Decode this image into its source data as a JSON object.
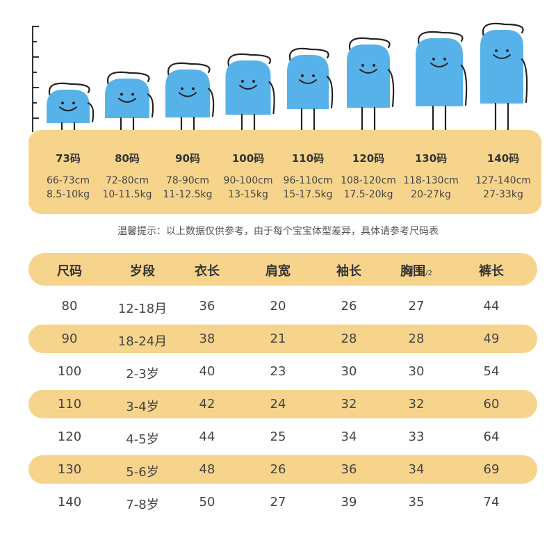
{
  "sizes": [
    {
      "label": "73码",
      "height": "66-73cm",
      "weight": "8.5-10kg"
    },
    {
      "label": "80码",
      "height": "72-80cm",
      "weight": "10-11.5kg"
    },
    {
      "label": "90码",
      "height": "78-90cm",
      "weight": "11-12.5kg"
    },
    {
      "label": "100码",
      "height": "90-100cm",
      "weight": "13-15kg"
    },
    {
      "label": "110码",
      "height": "96-110cm",
      "weight": "15-17.5kg"
    },
    {
      "label": "120码",
      "height": "108-120cm",
      "weight": "17.5-20kg"
    },
    {
      "label": "130码",
      "height": "118-130cm",
      "weight": "20-27kg"
    },
    {
      "label": "140码",
      "height": "127-140cm",
      "weight": "27-33kg"
    }
  ],
  "tip": "温馨提示：以上数据仅供参考，由于每个宝宝体型差异，具体请参考尺码表",
  "table": {
    "headers": [
      "尺码",
      "岁段",
      "衣长",
      "肩宽",
      "袖长",
      "胸围",
      "裤长"
    ],
    "header_suffix": "/2",
    "rows": [
      [
        "80",
        "12-18月",
        "36",
        "20",
        "26",
        "27",
        "44"
      ],
      [
        "90",
        "18-24月",
        "38",
        "21",
        "28",
        "28",
        "49"
      ],
      [
        "100",
        "2-3岁",
        "40",
        "23",
        "30",
        "30",
        "54"
      ],
      [
        "110",
        "3-4岁",
        "42",
        "24",
        "32",
        "32",
        "60"
      ],
      [
        "120",
        "4-5岁",
        "44",
        "25",
        "34",
        "33",
        "64"
      ],
      [
        "130",
        "5-6岁",
        "48",
        "26",
        "36",
        "34",
        "69"
      ],
      [
        "140",
        "7-8岁",
        "50",
        "27",
        "39",
        "35",
        "74"
      ]
    ]
  },
  "colors": {
    "band": "#f7d48c",
    "figure": "#57b2ea",
    "text": "#333333"
  }
}
